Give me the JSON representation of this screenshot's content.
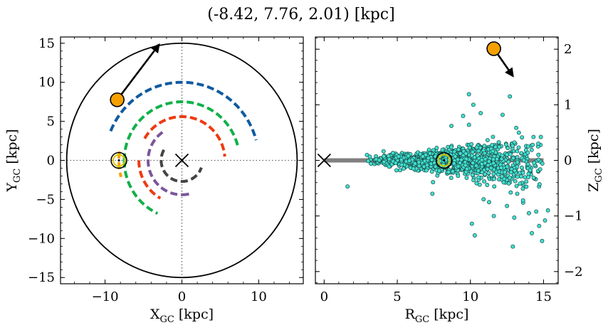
{
  "title": "(-8.42, 7.76, 2.01) [kpc]",
  "colors": {
    "ring1": "#0f5aa0",
    "ring2": "#10b048",
    "ring3": "#ee3a10",
    "ring4": "#7b559a",
    "ring5": "#444444",
    "orange": "#f5a000",
    "sun": "#d8c800",
    "scatter_fill": "#40e0d0",
    "scatter_edge": "#1a4a46",
    "plane": "#808080"
  },
  "chart_data": [
    {
      "type": "line",
      "name": "xy-map",
      "xlabel": "X",
      "xlabel_sub": "GC",
      "xlabel_unit": " [kpc]",
      "ylabel": "Y",
      "ylabel_sub": "GC",
      "ylabel_unit": " [kpc]",
      "xlim": [
        -15.8,
        15.8
      ],
      "ylim": [
        -15.8,
        15.8
      ],
      "xticks": [
        -10,
        0,
        10
      ],
      "xtick_labels": [
        "−10",
        "0",
        "10"
      ],
      "yticks": [
        -15,
        -10,
        -5,
        0,
        5,
        10,
        15
      ],
      "ytick_labels": [
        "−15",
        "−10",
        "−5",
        "0",
        "5",
        "10",
        "15"
      ],
      "boundary_radius": 15,
      "rings": [
        {
          "r": 10.0,
          "start_deg": 158,
          "end_deg": 15,
          "color_key": "ring1"
        },
        {
          "r": 7.5,
          "start_deg": 180,
          "end_deg": 15,
          "color_key": "ring2"
        },
        {
          "r": 7.5,
          "start_deg": 180,
          "end_deg": 245,
          "color_key": "ring2"
        },
        {
          "r": 5.6,
          "start_deg": 150,
          "end_deg": 5,
          "color_key": "ring3"
        },
        {
          "r": 5.6,
          "start_deg": 180,
          "end_deg": 240,
          "color_key": "ring3"
        },
        {
          "r": 4.4,
          "start_deg": 125,
          "end_deg": 270,
          "color_key": "ring4"
        },
        {
          "r": 4.4,
          "start_deg": 270,
          "end_deg": 285,
          "color_key": "ring4"
        },
        {
          "r": 2.7,
          "start_deg": 150,
          "end_deg": 340,
          "color_key": "ring5"
        },
        {
          "r": 8.2,
          "start_deg": 172,
          "end_deg": 195,
          "color_key": "orange"
        }
      ],
      "galactic_center": {
        "x": 0,
        "y": 0
      },
      "sun": {
        "x": -8.2,
        "y": 0.0
      },
      "source": {
        "x": -8.42,
        "y": 7.76
      },
      "arrow": {
        "from": [
          -8.42,
          7.76
        ],
        "to": [
          -3.0,
          14.8
        ]
      }
    },
    {
      "type": "scatter",
      "name": "rz-map",
      "xlabel": "R",
      "xlabel_sub": "GC",
      "xlabel_unit": " [kpc]",
      "ylabel": "Z",
      "ylabel_sub": "GC",
      "ylabel_unit": " [kpc]",
      "xlim": [
        -0.6,
        16.0
      ],
      "ylim": [
        -2.22,
        2.22
      ],
      "xticks": [
        0,
        5,
        10,
        15
      ],
      "xtick_labels": [
        "0",
        "5",
        "10",
        "15"
      ],
      "yticks": [
        -2,
        -1,
        0,
        1,
        2
      ],
      "ytick_labels": [
        "−2",
        "−1",
        "0",
        "1",
        "2"
      ],
      "galactic_plane": {
        "r_start": 0,
        "r_end": 15,
        "z": 0
      },
      "galactic_center": {
        "x": 0,
        "y": 0
      },
      "sun": {
        "x": 8.2,
        "y": 0.0
      },
      "source": {
        "x": 11.6,
        "y": 2.01
      },
      "arrow": {
        "from": [
          11.6,
          2.01
        ],
        "to": [
          12.9,
          1.52
        ]
      },
      "outliers": [
        [
          1.6,
          -0.47
        ],
        [
          3.2,
          -0.06
        ],
        [
          4.4,
          0.08
        ],
        [
          5.3,
          -0.08
        ],
        [
          7.4,
          -0.6
        ],
        [
          7.6,
          0.07
        ],
        [
          8.7,
          0.62
        ],
        [
          9.5,
          0.8
        ],
        [
          9.9,
          1.19
        ],
        [
          10.2,
          1.0
        ],
        [
          10.7,
          0.85
        ],
        [
          12.7,
          1.15
        ],
        [
          10.1,
          -1.14
        ],
        [
          10.3,
          -1.35
        ],
        [
          12.9,
          -1.55
        ],
        [
          14.2,
          -1.31
        ],
        [
          14.7,
          -1.18
        ],
        [
          15.1,
          -1.08
        ],
        [
          14.0,
          -0.95
        ],
        [
          14.5,
          -0.92
        ],
        [
          15.3,
          -0.9
        ],
        [
          12.5,
          -0.82
        ],
        [
          13.6,
          -0.72
        ],
        [
          11.6,
          -1.0
        ],
        [
          13.0,
          -1.03
        ],
        [
          14.9,
          -1.45
        ],
        [
          10.9,
          -0.7
        ],
        [
          9.9,
          0.64
        ],
        [
          12.2,
          0.82
        ],
        [
          13.2,
          -0.6
        ]
      ],
      "cloud": {
        "n": 1300,
        "r_min": 2.8,
        "r_max": 15.2,
        "r_peak": 8.5,
        "z_spread_inner": 0.05,
        "z_spread_outer": 0.36
      }
    }
  ]
}
